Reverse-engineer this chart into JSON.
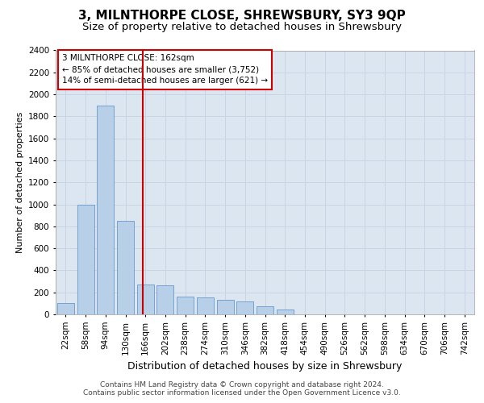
{
  "title1": "3, MILNTHORPE CLOSE, SHREWSBURY, SY3 9QP",
  "title2": "Size of property relative to detached houses in Shrewsbury",
  "xlabel": "Distribution of detached houses by size in Shrewsbury",
  "ylabel": "Number of detached properties",
  "bar_labels": [
    "22sqm",
    "58sqm",
    "94sqm",
    "130sqm",
    "166sqm",
    "202sqm",
    "238sqm",
    "274sqm",
    "310sqm",
    "346sqm",
    "382sqm",
    "418sqm",
    "454sqm",
    "490sqm",
    "526sqm",
    "562sqm",
    "598sqm",
    "634sqm",
    "670sqm",
    "706sqm",
    "742sqm"
  ],
  "bar_values": [
    100,
    1000,
    1900,
    850,
    270,
    265,
    160,
    155,
    130,
    115,
    75,
    45,
    0,
    0,
    0,
    0,
    0,
    0,
    0,
    0,
    0
  ],
  "bar_color": "#b8cfe8",
  "bar_edge_color": "#6699cc",
  "grid_color": "#c8d4e4",
  "bg_color": "#dce6f0",
  "vline_color": "#cc0000",
  "annotation_text": "3 MILNTHORPE CLOSE: 162sqm\n← 85% of detached houses are smaller (3,752)\n14% of semi-detached houses are larger (621) →",
  "annotation_box_color": "#cc0000",
  "ylim": [
    0,
    2400
  ],
  "yticks": [
    0,
    200,
    400,
    600,
    800,
    1000,
    1200,
    1400,
    1600,
    1800,
    2000,
    2200,
    2400
  ],
  "footer1": "Contains HM Land Registry data © Crown copyright and database right 2024.",
  "footer2": "Contains public sector information licensed under the Open Government Licence v3.0.",
  "title1_fontsize": 11,
  "title2_fontsize": 9.5,
  "xlabel_fontsize": 9,
  "ylabel_fontsize": 8,
  "tick_fontsize": 7.5,
  "footer_fontsize": 6.5,
  "ann_fontsize": 7.5
}
